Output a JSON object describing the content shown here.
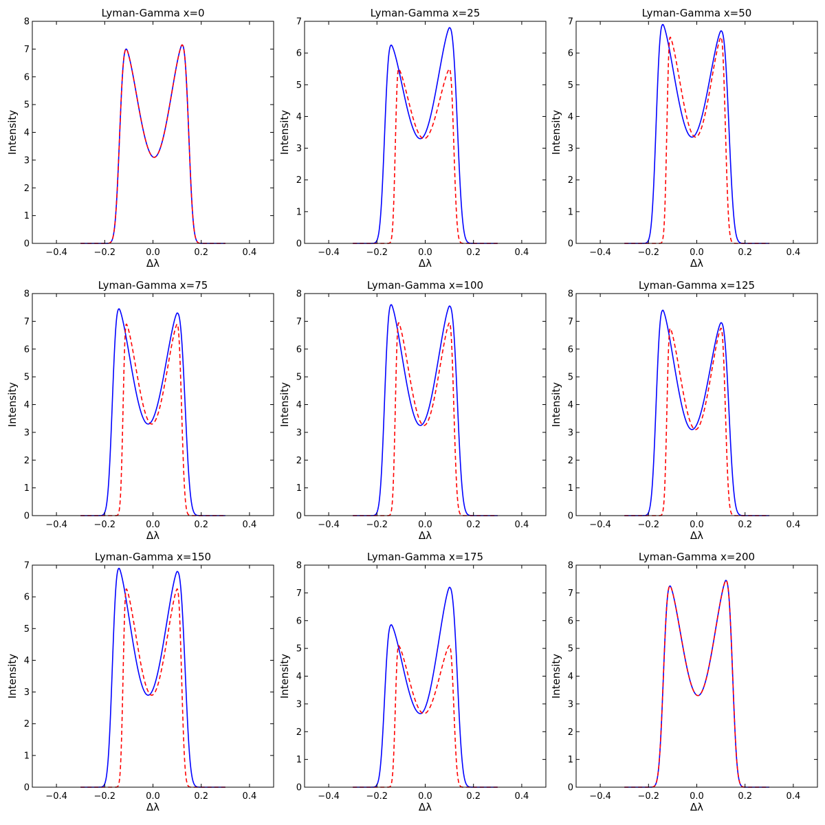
{
  "chart_data": {
    "type": "line",
    "layout": "3x3 grid",
    "xlabel": "Δλ",
    "ylabel": "Intensity",
    "xlim": [
      -0.5,
      0.5
    ],
    "xticks": [
      -0.4,
      -0.2,
      0.0,
      0.2,
      0.4
    ],
    "xtick_labels": [
      "−0.4",
      "−0.2",
      "0.0",
      "0.2",
      "0.4"
    ],
    "grid": false,
    "legend": "none",
    "series_style": [
      {
        "color": "#0000ff",
        "dash": "solid"
      },
      {
        "color": "#ff0000",
        "dash": "dashed"
      }
    ],
    "panels": [
      {
        "title": "Lyman-Gamma x=0",
        "ylim": [
          0,
          8
        ],
        "yticks": [
          0,
          1,
          2,
          3,
          4,
          5,
          6,
          7,
          8
        ],
        "series": [
          {
            "left_peak": 7.0,
            "right_peak": 7.15,
            "trough": 3.1
          },
          {
            "left_peak": 7.0,
            "right_peak": 7.15,
            "trough": 3.1
          }
        ]
      },
      {
        "title": "Lyman-Gamma x=25",
        "ylim": [
          0,
          7
        ],
        "yticks": [
          0,
          1,
          2,
          3,
          4,
          5,
          6,
          7
        ],
        "series": [
          {
            "left_peak": 6.25,
            "right_peak": 6.8,
            "trough": 3.3
          },
          {
            "left_peak": 5.5,
            "right_peak": 5.5,
            "trough": 3.3
          }
        ]
      },
      {
        "title": "Lyman-Gamma x=50",
        "ylim": [
          0,
          7
        ],
        "yticks": [
          0,
          1,
          2,
          3,
          4,
          5,
          6,
          7
        ],
        "series": [
          {
            "left_peak": 6.9,
            "right_peak": 6.7,
            "trough": 3.35
          },
          {
            "left_peak": 6.5,
            "right_peak": 6.5,
            "trough": 3.35
          }
        ]
      },
      {
        "title": "Lyman-Gamma x=75",
        "ylim": [
          0,
          8
        ],
        "yticks": [
          0,
          1,
          2,
          3,
          4,
          5,
          6,
          7,
          8
        ],
        "series": [
          {
            "left_peak": 7.45,
            "right_peak": 7.3,
            "trough": 3.3
          },
          {
            "left_peak": 6.9,
            "right_peak": 6.9,
            "trough": 3.3
          }
        ]
      },
      {
        "title": "Lyman-Gamma x=100",
        "ylim": [
          0,
          8
        ],
        "yticks": [
          0,
          1,
          2,
          3,
          4,
          5,
          6,
          7,
          8
        ],
        "series": [
          {
            "left_peak": 7.6,
            "right_peak": 7.55,
            "trough": 3.25
          },
          {
            "left_peak": 6.95,
            "right_peak": 6.95,
            "trough": 3.25
          }
        ]
      },
      {
        "title": "Lyman-Gamma x=125",
        "ylim": [
          0,
          8
        ],
        "yticks": [
          0,
          1,
          2,
          3,
          4,
          5,
          6,
          7,
          8
        ],
        "series": [
          {
            "left_peak": 7.4,
            "right_peak": 6.95,
            "trough": 3.1
          },
          {
            "left_peak": 6.75,
            "right_peak": 6.75,
            "trough": 3.1
          }
        ]
      },
      {
        "title": "Lyman-Gamma x=150",
        "ylim": [
          0,
          7
        ],
        "yticks": [
          0,
          1,
          2,
          3,
          4,
          5,
          6,
          7
        ],
        "series": [
          {
            "left_peak": 6.9,
            "right_peak": 6.8,
            "trough": 2.9
          },
          {
            "left_peak": 6.25,
            "right_peak": 6.25,
            "trough": 2.9
          }
        ]
      },
      {
        "title": "Lyman-Gamma x=175",
        "ylim": [
          0,
          8
        ],
        "yticks": [
          0,
          1,
          2,
          3,
          4,
          5,
          6,
          7,
          8
        ],
        "series": [
          {
            "left_peak": 5.85,
            "right_peak": 7.2,
            "trough": 2.65
          },
          {
            "left_peak": 5.1,
            "right_peak": 5.1,
            "trough": 2.65
          }
        ]
      },
      {
        "title": "Lyman-Gamma x=200",
        "ylim": [
          0,
          8
        ],
        "yticks": [
          0,
          1,
          2,
          3,
          4,
          5,
          6,
          7,
          8
        ],
        "series": [
          {
            "left_peak": 7.25,
            "right_peak": 7.45,
            "trough": 3.3
          },
          {
            "left_peak": 7.25,
            "right_peak": 7.45,
            "trough": 3.3
          }
        ]
      }
    ]
  }
}
